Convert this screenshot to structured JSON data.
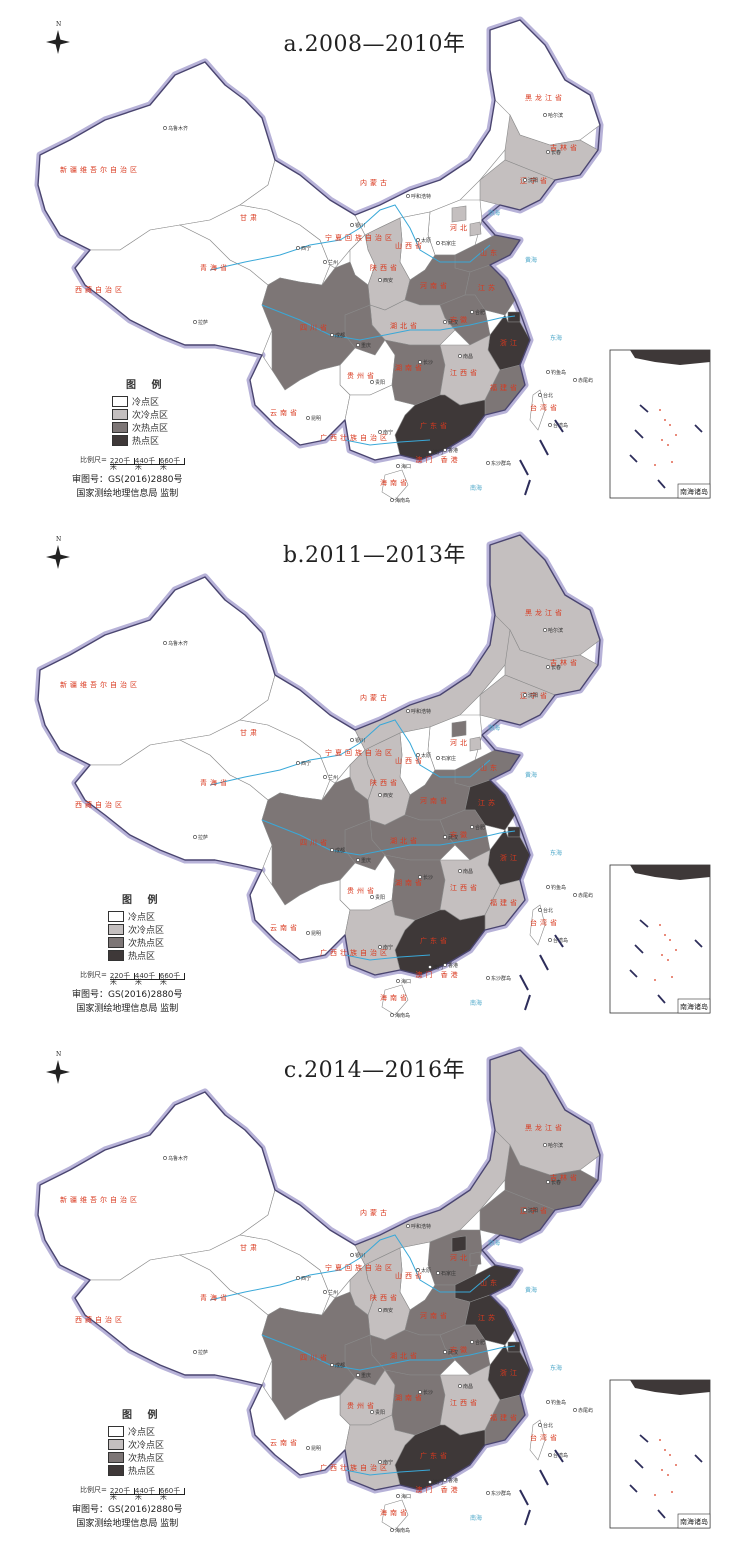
{
  "legend": {
    "title": "图 例",
    "classes": [
      {
        "label": "冷点区",
        "color": "#ffffff"
      },
      {
        "label": "次冷点区",
        "color": "#c4bfbf"
      },
      {
        "label": "次热点区",
        "color": "#7d7676"
      },
      {
        "label": "热点区",
        "color": "#3e3838"
      }
    ]
  },
  "scale": {
    "prefix": "比例尺=",
    "ticks": [
      "220千米",
      "440千米",
      "660千米"
    ]
  },
  "approval": {
    "line1": "审图号：GS(2016)2880号",
    "line2": "国家测绘地理信息局 监制"
  },
  "north_label": "N",
  "inset_label": "南海诸岛",
  "cities": {
    "urumqi": "乌鲁木齐",
    "lhasa": "拉萨",
    "xining": "西宁",
    "lanzhou": "兰州",
    "yinchuan": "银川",
    "hohhot": "呼和浩特",
    "taiyuan": "太原",
    "shijiazhuang": "石家庄",
    "xian": "西安",
    "chengdu": "成都",
    "chongqing": "重庆",
    "guiyang": "贵阳",
    "kunming": "昆明",
    "nanning": "南宁",
    "haikou": "海口",
    "changsha": "长沙",
    "wuhan": "武汉",
    "nanchang": "南昌",
    "hefei": "合肥",
    "taipei": "台北",
    "harbin": "哈尔滨",
    "changchun": "长春",
    "shenyang": "沈阳",
    "hongkong": "香港",
    "macau": "澳门",
    "hainan_island": "海南岛",
    "taiwan_island": "台湾岛",
    "chiwei": "赤尾屿",
    "diaoyu": "钓鱼岛",
    "dongsha": "东沙群岛"
  },
  "provinces": {
    "xinjiang": "新疆维吾尔自治区",
    "tibet": "西藏自治区",
    "qinghai": "青海省",
    "gansu": "甘肃",
    "inner_mongolia": "内蒙古",
    "heilongjiang": "黑龙江省",
    "jilin": "吉林省",
    "liaoning": "辽宁省",
    "hebei": "河北",
    "shanxi": "山西省",
    "shaanxi": "陕西省",
    "ningxia": "宁夏回族自治区",
    "sichuan": "四川省",
    "yunnan": "云南省",
    "guizhou": "贵州省",
    "guangxi": "广西壮族自治区",
    "hunan": "湖南省",
    "hubei": "湖北省",
    "henan": "河南省",
    "anhui": "安徽",
    "jiangxi": "江西省",
    "fujian": "福建省",
    "zhejiang": "浙江",
    "jiangsu": "江苏",
    "shandong": "山东",
    "guangdong": "广东省",
    "hainan": "海南省",
    "taiwan": "台湾省",
    "hk_mo": "澳门 香港",
    "jiangsu_sh": "上海"
  },
  "seas": {
    "bohai": "渤海",
    "yellow": "黄海",
    "east": "东海",
    "south": "南海"
  },
  "panels": [
    {
      "title": "a.2008—2010年",
      "classes": {
        "xinjiang": 0,
        "tibet": 0,
        "qinghai": 0,
        "gansu": 0,
        "inner_mongolia": 0,
        "heilongjiang": 0,
        "jilin": 1,
        "liaoning": 1,
        "hebei": 0,
        "beijing": 1,
        "tianjin": 1,
        "shanxi": 0,
        "shaanxi": 1,
        "ningxia": 0,
        "henan": 2,
        "shandong": 2,
        "jiangsu": 2,
        "anhui": 2,
        "hubei": 1,
        "sichuan": 2,
        "chongqing": 2,
        "guizhou": 0,
        "yunnan": 0,
        "hunan": 2,
        "jiangxi": 1,
        "zhejiang": 3,
        "shanghai": 3,
        "fujian": 2,
        "guangdong": 3,
        "guangxi": 0,
        "hainan": 0,
        "taiwan": 0
      }
    },
    {
      "title": "b.2011—2013年",
      "classes": {
        "xinjiang": 0,
        "tibet": 0,
        "qinghai": 0,
        "gansu": 0,
        "inner_mongolia": 1,
        "heilongjiang": 1,
        "jilin": 1,
        "liaoning": 1,
        "hebei": 0,
        "beijing": 2,
        "tianjin": 1,
        "shanxi": 0,
        "shaanxi": 1,
        "ningxia": 1,
        "henan": 2,
        "shandong": 2,
        "jiangsu": 3,
        "anhui": 2,
        "hubei": 2,
        "sichuan": 2,
        "chongqing": 2,
        "guizhou": 0,
        "yunnan": 0,
        "hunan": 2,
        "jiangxi": 1,
        "zhejiang": 3,
        "shanghai": 3,
        "fujian": 1,
        "guangdong": 3,
        "guangxi": 1,
        "hainan": 0,
        "taiwan": 0
      }
    },
    {
      "title": "c.2014—2016年",
      "classes": {
        "xinjiang": 0,
        "tibet": 0,
        "qinghai": 0,
        "gansu": 0,
        "inner_mongolia": 1,
        "heilongjiang": 1,
        "jilin": 2,
        "liaoning": 2,
        "hebei": 2,
        "beijing": 3,
        "tianjin": 2,
        "shanxi": 0,
        "shaanxi": 1,
        "ningxia": 1,
        "henan": 2,
        "shandong": 3,
        "jiangsu": 3,
        "anhui": 2,
        "hubei": 2,
        "sichuan": 2,
        "chongqing": 2,
        "guizhou": 1,
        "yunnan": 0,
        "hunan": 2,
        "jiangxi": 1,
        "zhejiang": 3,
        "shanghai": 3,
        "fujian": 2,
        "guangdong": 3,
        "guangxi": 1,
        "hainan": 0,
        "taiwan": 0
      }
    }
  ]
}
